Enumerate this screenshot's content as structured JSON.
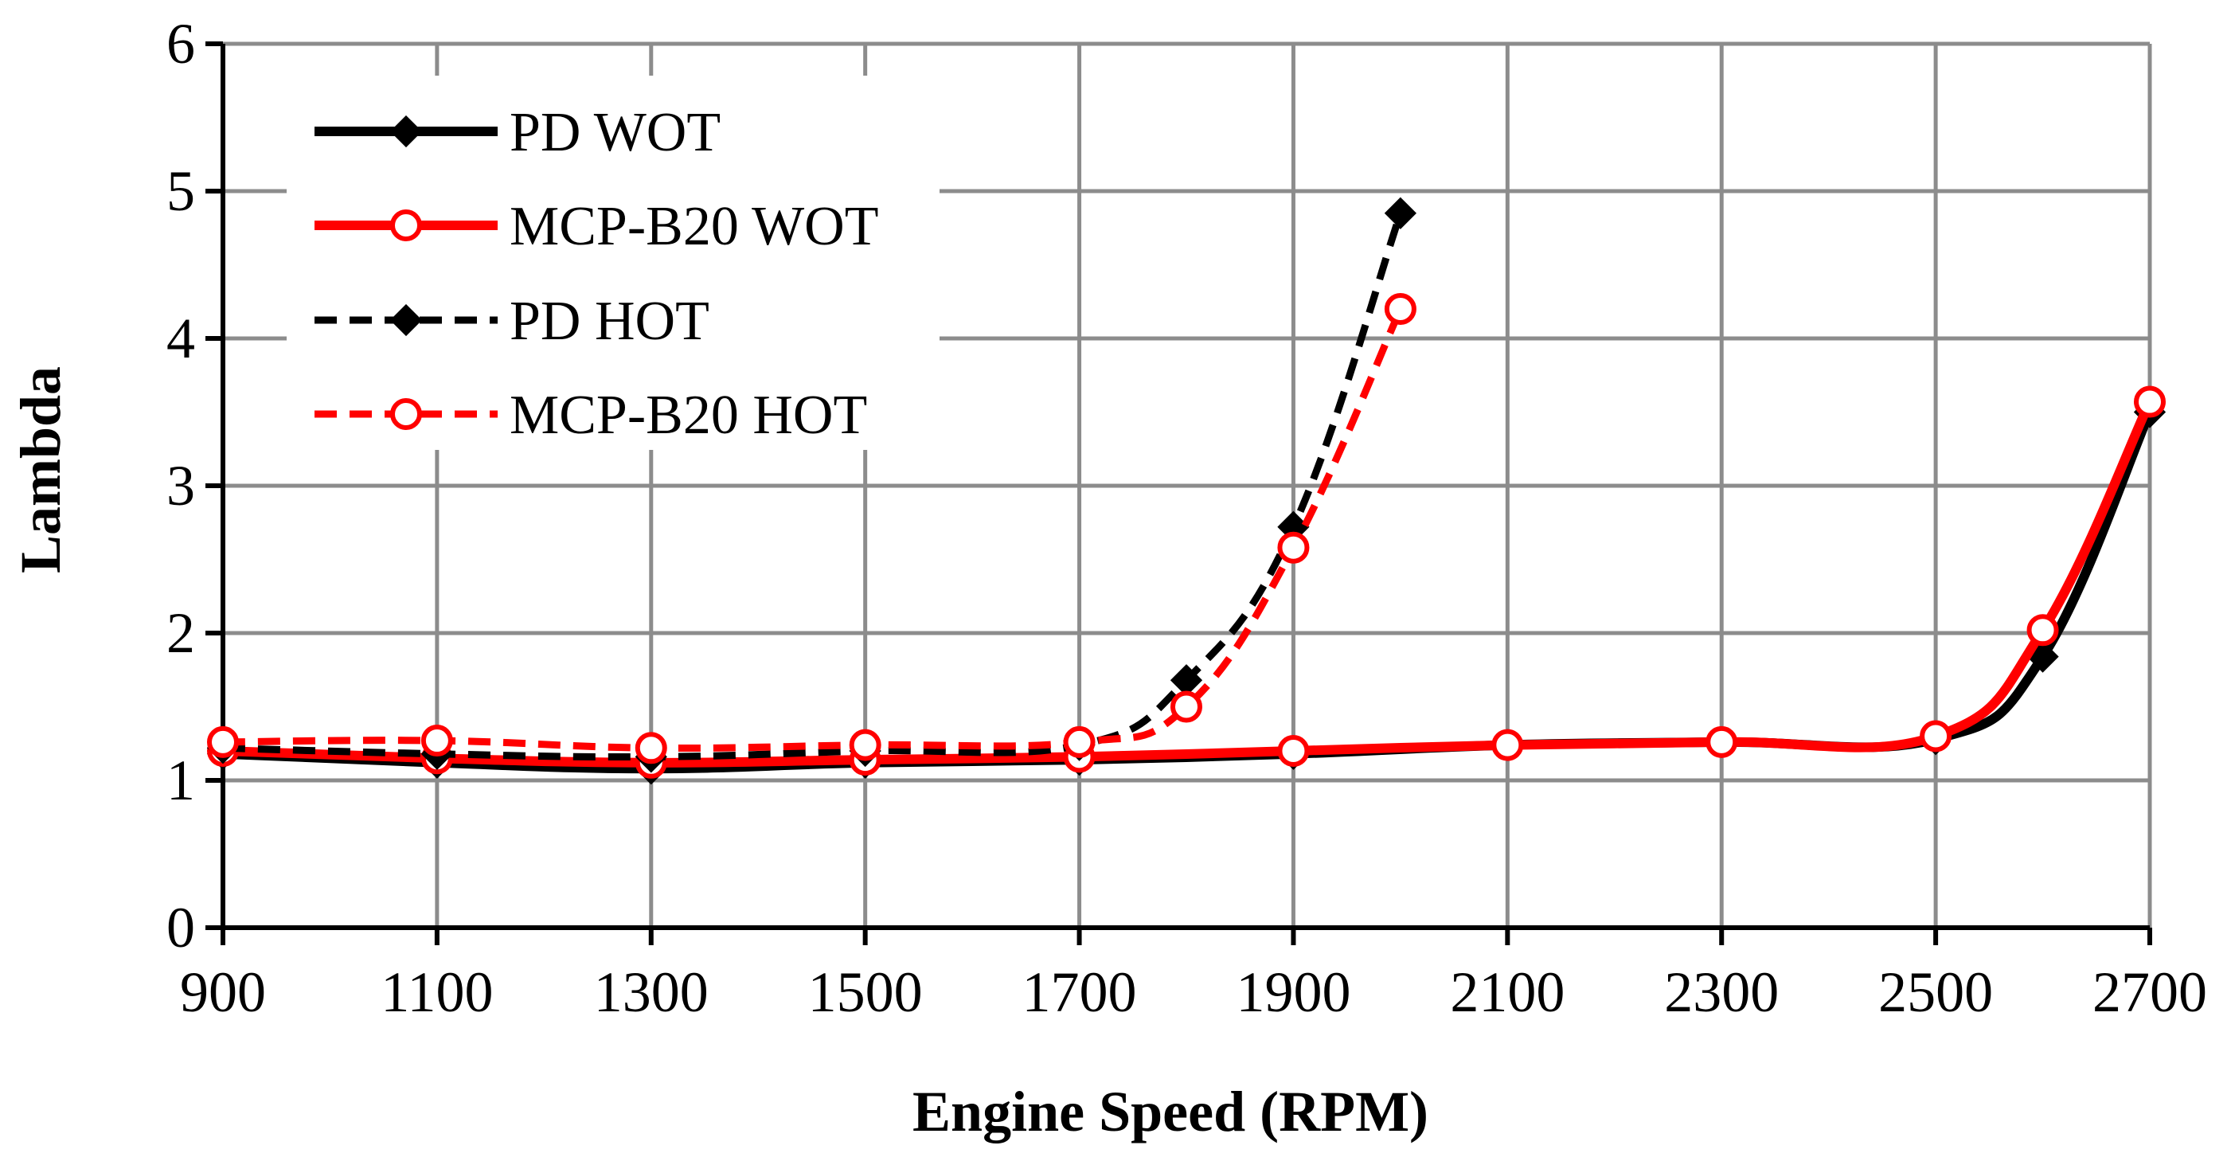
{
  "chart_data": {
    "type": "line",
    "title": "",
    "xlabel": "Engine Speed (RPM)",
    "ylabel": "Lambda",
    "xlim": [
      900,
      2700
    ],
    "ylim": [
      0,
      6
    ],
    "xticks": [
      900,
      1100,
      1300,
      1500,
      1700,
      1900,
      2100,
      2300,
      2500,
      2700
    ],
    "yticks": [
      0,
      1,
      2,
      3,
      4,
      5,
      6
    ],
    "grid": true,
    "legend_position": "top-left",
    "series": [
      {
        "name": "PD WOT",
        "color": "#000000",
        "dash": "solid",
        "marker": "diamond",
        "x": [
          900,
          1100,
          1300,
          1500,
          1700,
          1900,
          2100,
          2300,
          2500,
          2600,
          2700
        ],
        "y": [
          1.18,
          1.12,
          1.08,
          1.12,
          1.14,
          1.18,
          1.24,
          1.26,
          1.28,
          1.84,
          3.5
        ]
      },
      {
        "name": "MCP-B20 WOT",
        "color": "#ff0000",
        "dash": "solid",
        "marker": "circle",
        "x": [
          900,
          1100,
          1300,
          1500,
          1700,
          1900,
          2100,
          2300,
          2500,
          2600,
          2700
        ],
        "y": [
          1.2,
          1.15,
          1.12,
          1.14,
          1.16,
          1.2,
          1.24,
          1.26,
          1.3,
          2.02,
          3.57
        ]
      },
      {
        "name": "PD HOT",
        "color": "#000000",
        "dash": "dashed",
        "marker": "diamond",
        "x": [
          900,
          1100,
          1300,
          1500,
          1700,
          1800,
          1900,
          2000
        ],
        "y": [
          1.22,
          1.18,
          1.16,
          1.2,
          1.24,
          1.68,
          2.72,
          4.85
        ]
      },
      {
        "name": "MCP-B20 HOT",
        "color": "#ff0000",
        "dash": "dashed",
        "marker": "circle",
        "x": [
          900,
          1100,
          1300,
          1500,
          1700,
          1800,
          1900,
          2000
        ],
        "y": [
          1.26,
          1.27,
          1.22,
          1.24,
          1.26,
          1.5,
          2.58,
          4.2
        ]
      }
    ]
  }
}
